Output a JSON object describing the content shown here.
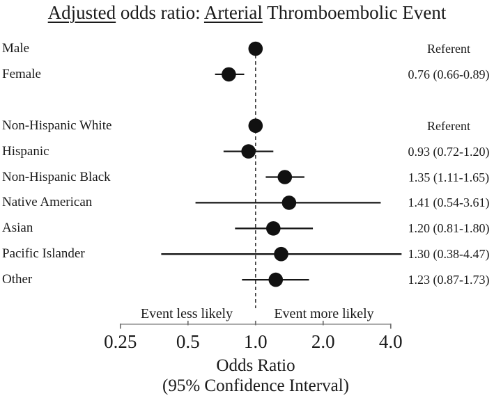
{
  "chart_data": {
    "type": "scatter",
    "subtype": "forest-plot",
    "title": "Adjusted odds ratio: Arterial Thromboembolic Event",
    "title_parts": [
      {
        "text": "Adjusted",
        "underline": true
      },
      {
        "text": " odds ratio: ",
        "underline": false
      },
      {
        "text": "Arterial",
        "underline": true
      },
      {
        "text": " Thromboembolic Event",
        "underline": false
      }
    ],
    "groups": [
      {
        "rows": [
          {
            "label": "Male",
            "or": 1.0,
            "ci_low": null,
            "ci_high": null,
            "value_text": "Referent"
          },
          {
            "label": "Female",
            "or": 0.76,
            "ci_low": 0.66,
            "ci_high": 0.89,
            "value_text": "0.76 (0.66-0.89)"
          }
        ]
      },
      {
        "rows": [
          {
            "label": "Non-Hispanic White",
            "or": 1.0,
            "ci_low": null,
            "ci_high": null,
            "value_text": "Referent"
          },
          {
            "label": "Hispanic",
            "or": 0.93,
            "ci_low": 0.72,
            "ci_high": 1.2,
            "value_text": "0.93 (0.72-1.20)"
          },
          {
            "label": "Non-Hispanic Black",
            "or": 1.35,
            "ci_low": 1.11,
            "ci_high": 1.65,
            "value_text": "1.35 (1.11-1.65)"
          },
          {
            "label": "Native American",
            "or": 1.41,
            "ci_low": 0.54,
            "ci_high": 3.61,
            "value_text": "1.41 (0.54-3.61)"
          },
          {
            "label": "Asian",
            "or": 1.2,
            "ci_low": 0.81,
            "ci_high": 1.8,
            "value_text": "1.20 (0.81-1.80)"
          },
          {
            "label": "Pacific Islander",
            "or": 1.3,
            "ci_low": 0.38,
            "ci_high": 4.47,
            "value_text": "1.30 (0.38-4.47)"
          },
          {
            "label": "Other",
            "or": 1.23,
            "ci_low": 0.87,
            "ci_high": 1.73,
            "value_text": "1.23 (0.87-1.73)"
          }
        ]
      }
    ],
    "axis": {
      "scale": "log2",
      "ticks": [
        0.25,
        0.5,
        1.0,
        2.0,
        4.0
      ],
      "tick_labels": [
        "0.25",
        "0.5",
        "1.0",
        "2.0",
        "4.0"
      ],
      "xlim": [
        0.25,
        4.0
      ],
      "reference_line": 1.0,
      "left_annotation": "Event less likely",
      "right_annotation": "Event more likely",
      "xlabel_line1": "Odds Ratio",
      "xlabel_line2": "(95% Confidence Interval)",
      "grid": "off",
      "legend": "none"
    },
    "style": {
      "marker_color": "#111111",
      "ci_line_color": "#161616",
      "axis_color": "#909090",
      "tick_color": "#6f6f6f",
      "reference_line_color": "#3c3c3c",
      "text_color": "#1a1a1a",
      "background_color": "#ffffff"
    }
  }
}
